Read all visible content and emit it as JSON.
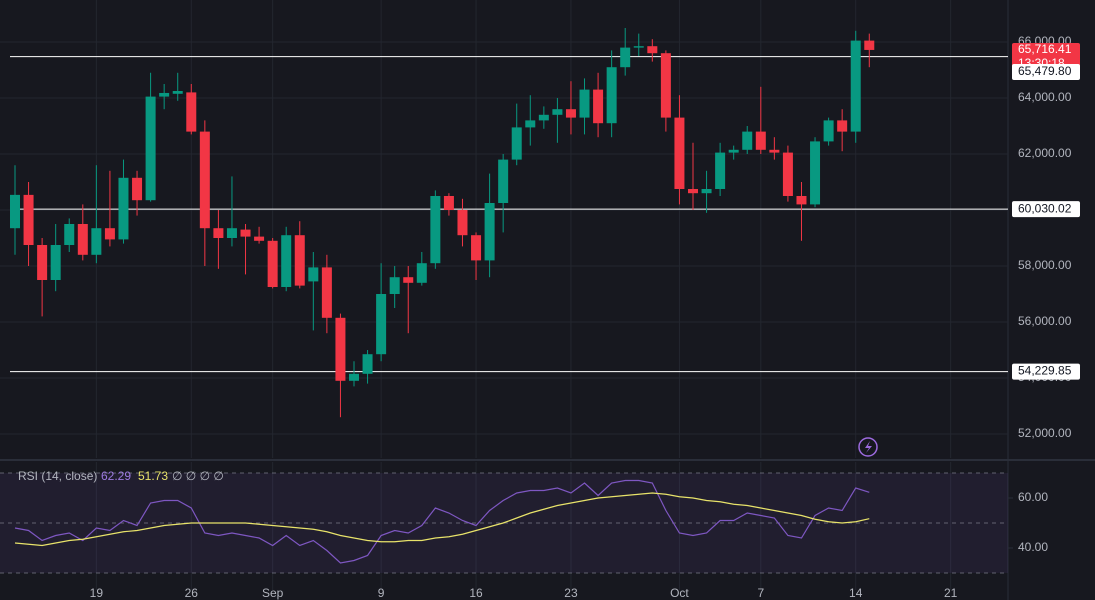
{
  "chart_data": {
    "type": "candlestick",
    "categories": [
      null,
      null,
      null,
      null,
      null,
      null,
      "19",
      null,
      null,
      null,
      null,
      null,
      null,
      "26",
      null,
      null,
      null,
      null,
      null,
      "Sep",
      null,
      null,
      null,
      null,
      null,
      null,
      null,
      "9",
      null,
      null,
      null,
      null,
      null,
      null,
      "16",
      null,
      null,
      null,
      null,
      null,
      null,
      "23",
      null,
      null,
      null,
      null,
      null,
      null,
      null,
      "Oct",
      null,
      null,
      null,
      null,
      null,
      "7",
      null,
      null,
      null,
      null,
      null,
      null,
      "14",
      null,
      null,
      null,
      null,
      null,
      null,
      "21"
    ],
    "open": [
      59350,
      60540,
      58750,
      57500,
      58750,
      59500,
      58400,
      59350,
      58950,
      61150,
      60350,
      64050,
      64150,
      64200,
      62800,
      59350,
      59000,
      59300,
      59050,
      58900,
      57250,
      59100,
      57450,
      57950,
      56150,
      53900,
      54150,
      54850,
      57000,
      57600,
      57400,
      58100,
      60500,
      60000,
      59100,
      58200,
      60250,
      61800,
      62950,
      63200,
      63400,
      63600,
      63300,
      64300,
      63100,
      65100,
      65800,
      65850,
      65600,
      63300,
      60750,
      60600,
      60750,
      62050,
      62150,
      62800,
      62150,
      62050,
      60500,
      60200,
      62450,
      63200,
      62800,
      66050,
      null,
      null,
      null,
      null,
      null,
      null
    ],
    "high": [
      61600,
      61000,
      59000,
      59500,
      59700,
      60200,
      61600,
      61400,
      61800,
      61400,
      64900,
      64500,
      64900,
      64500,
      63200,
      60000,
      61200,
      59500,
      59400,
      59000,
      59400,
      59600,
      58500,
      58400,
      56300,
      54600,
      55000,
      58100,
      58000,
      58000,
      58500,
      60700,
      60600,
      60400,
      59200,
      61300,
      62000,
      63800,
      64100,
      63700,
      64000,
      64600,
      64700,
      64900,
      65700,
      66500,
      66300,
      66100,
      65700,
      64100,
      62400,
      61400,
      62400,
      62300,
      63000,
      64400,
      62600,
      62300,
      61000,
      62600,
      63300,
      63600,
      66400,
      66300,
      null,
      null,
      null,
      null,
      null,
      null
    ],
    "low": [
      58400,
      58000,
      56200,
      57100,
      58500,
      58200,
      58100,
      58700,
      58800,
      59800,
      60300,
      63600,
      63900,
      62700,
      58000,
      57900,
      58700,
      57700,
      58800,
      57200,
      57100,
      57200,
      55700,
      55600,
      52600,
      53700,
      53800,
      54600,
      56500,
      55600,
      57300,
      57900,
      59800,
      58700,
      57500,
      57600,
      59200,
      61600,
      62300,
      62900,
      62400,
      62700,
      62700,
      62600,
      62600,
      64800,
      65500,
      65300,
      62800,
      60200,
      60000,
      59900,
      60500,
      61800,
      62000,
      62000,
      61800,
      60300,
      58900,
      60100,
      62300,
      62100,
      62400,
      65100,
      null,
      null,
      null,
      null,
      null,
      null
    ],
    "close": [
      60540,
      58750,
      57500,
      58750,
      59500,
      58400,
      59350,
      58950,
      61150,
      60350,
      64050,
      64180,
      64250,
      62800,
      59350,
      59000,
      59350,
      59050,
      58900,
      57250,
      59100,
      57300,
      57950,
      56150,
      53900,
      54150,
      54850,
      57000,
      57600,
      57400,
      58100,
      60500,
      60000,
      59100,
      58200,
      60250,
      61800,
      62950,
      63200,
      63400,
      63600,
      63300,
      64300,
      63100,
      65100,
      65800,
      65850,
      65600,
      63300,
      60750,
      60600,
      60750,
      62050,
      62150,
      62800,
      62150,
      62050,
      60500,
      60200,
      62450,
      63200,
      62800,
      66050,
      65716.41,
      null,
      null,
      null,
      null,
      null,
      null
    ],
    "up_color": "#089981",
    "down_color": "#f23645",
    "ylim": [
      51143,
      67500
    ],
    "yticks": [
      {
        "value": 66000,
        "label": "66,000.00"
      },
      {
        "value": 64000,
        "label": "64,000.00"
      },
      {
        "value": 62000,
        "label": "62,000.00"
      },
      {
        "value": 60000,
        "label": "60,000.00"
      },
      {
        "value": 58000,
        "label": "58,000.00"
      },
      {
        "value": 56000,
        "label": "56,000.00"
      },
      {
        "value": 54000,
        "label": "54,000.00"
      },
      {
        "value": 52000,
        "label": "52,000.00"
      }
    ],
    "grid": true,
    "last_price": {
      "value": 65716.41,
      "label": "65,716.41"
    },
    "countdown": "13:30:18",
    "hlines": [
      {
        "value": 65479.8,
        "label": "65,479.80"
      },
      {
        "value": 60030.02,
        "label": "60,030.02"
      },
      {
        "value": 54229.85,
        "label": "54,229.85"
      }
    ],
    "rsi": {
      "type": "line",
      "title": "RSI (14, close)",
      "symbols": "∅ ∅ ∅ ∅",
      "ylim": [
        23.2,
        74.4
      ],
      "yticks": [
        {
          "value": 60,
          "label": "60.00"
        },
        {
          "value": 40,
          "label": "40.00"
        }
      ],
      "bands": [
        70,
        50,
        30
      ],
      "series": [
        {
          "color": "#7e57c2",
          "values": [
            48,
            47,
            43,
            45,
            46,
            43,
            48,
            47,
            51,
            49,
            58,
            59,
            59,
            56,
            46,
            45,
            46,
            45,
            44,
            41,
            45,
            41,
            43,
            39,
            34,
            35,
            37,
            45,
            47,
            46,
            49,
            56,
            54,
            51,
            49,
            55,
            59,
            62,
            63,
            63,
            64,
            62,
            66,
            61,
            66,
            67,
            67,
            66,
            55,
            46,
            45,
            46,
            51,
            51,
            54,
            53,
            52,
            45,
            44,
            53,
            56,
            55,
            64,
            62.29,
            null,
            null,
            null,
            null,
            null,
            null
          ]
        },
        {
          "color": "#e8e36a",
          "values": [
            42,
            41.5,
            41,
            42,
            43,
            43.5,
            44.5,
            45.5,
            46.5,
            47,
            48,
            49,
            49.5,
            50,
            50,
            50,
            50,
            50,
            49.5,
            49,
            48.5,
            48,
            47.5,
            46.5,
            45,
            44,
            43,
            42.5,
            42.5,
            43,
            43,
            44,
            44.5,
            45.5,
            47,
            48.5,
            50,
            52,
            54,
            55.5,
            57,
            58,
            59,
            60,
            60.5,
            61,
            61.5,
            62,
            61.5,
            60.5,
            60,
            59,
            58.5,
            57.5,
            57,
            56,
            55,
            54,
            53,
            51.5,
            50.5,
            50,
            50.5,
            51.73,
            null,
            null,
            null,
            null,
            null,
            null
          ]
        }
      ]
    }
  }
}
